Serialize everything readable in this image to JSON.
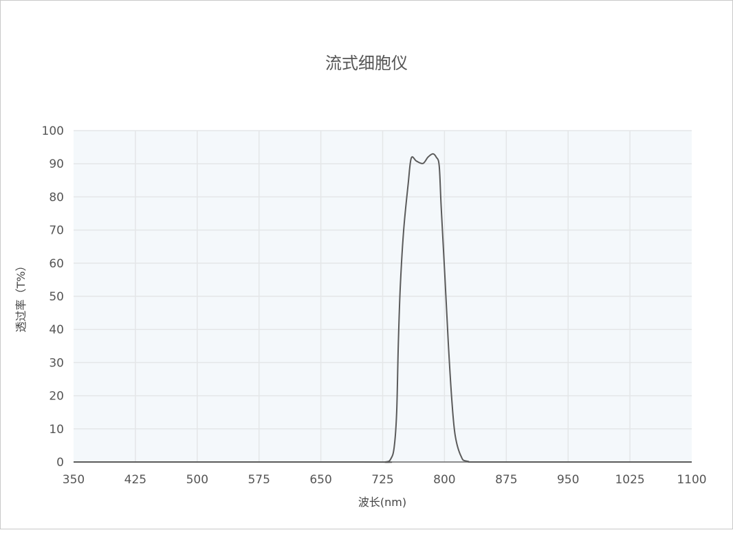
{
  "chart_data": {
    "type": "line",
    "title": "流式细胞仪",
    "xlabel": "波长(nm)",
    "ylabel": "透过率（T%）",
    "xlim": [
      350,
      1100
    ],
    "ylim": [
      0,
      100
    ],
    "xticks": [
      350,
      425,
      500,
      575,
      650,
      725,
      800,
      875,
      950,
      1025,
      1100
    ],
    "yticks": [
      0,
      10,
      20,
      30,
      40,
      50,
      60,
      70,
      80,
      90,
      100
    ],
    "grid": true,
    "colors": {
      "line": "#5a5a5a",
      "plot_bg": "#f4f8fb",
      "grid": "#e4e6e8"
    },
    "series": [
      {
        "x": [
          350,
          700,
          728,
          735,
          739,
          742,
          744,
          746.4,
          750.5,
          756,
          759.7,
          766,
          774,
          780,
          786,
          790,
          793.6,
          796,
          800.5,
          804.7,
          809,
          813,
          820,
          828,
          860,
          1100
        ],
        "y": [
          0,
          0,
          0,
          1,
          4.5,
          15,
          35.6,
          53,
          70,
          84,
          91.7,
          90.8,
          90.1,
          92,
          93,
          92,
          89.4,
          77,
          56,
          35.6,
          18.4,
          8,
          1.8,
          0.2,
          0,
          0
        ]
      }
    ]
  }
}
